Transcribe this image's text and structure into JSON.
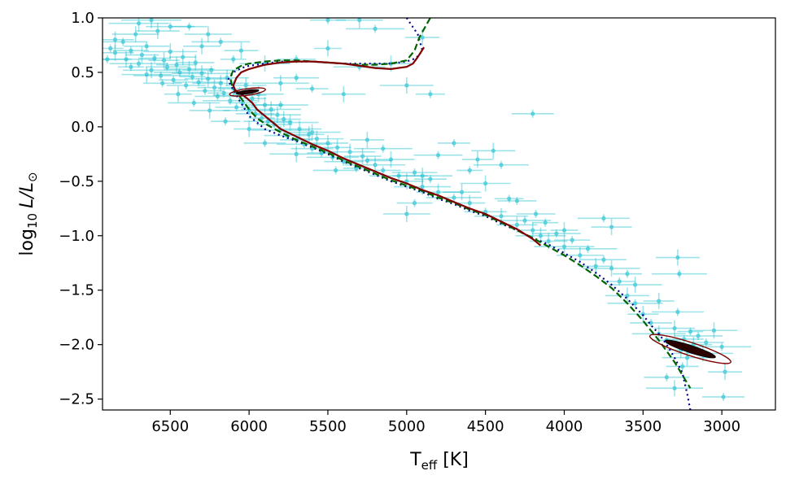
{
  "chart_data": {
    "type": "scatter",
    "title": "",
    "xlabel_main": "T",
    "xlabel_sub": "eff",
    "xlabel_unit": " [K]",
    "ylabel_prefix": "log",
    "ylabel_sub": "10",
    "ylabel_var": "L/L",
    "ylabel_sun": "⊙",
    "x_reversed": true,
    "xlim": [
      6930,
      2660
    ],
    "ylim": [
      -2.6,
      1.0
    ],
    "xticks": [
      6500,
      6000,
      5500,
      5000,
      4500,
      4000,
      3500,
      3000
    ],
    "xtick_labels": [
      "6500",
      "6000",
      "5500",
      "5000",
      "4500",
      "4000",
      "3500",
      "3000"
    ],
    "yticks": [
      1.0,
      0.5,
      0.0,
      -0.5,
      -1.0,
      -1.5,
      -2.0,
      -2.5
    ],
    "ytick_labels": [
      "1.0",
      "0.5",
      "0.0",
      "−0.5",
      "−1.0",
      "−1.5",
      "−2.0",
      "−2.5"
    ],
    "grid": false,
    "colors": {
      "points": "#17becf",
      "dotted": "#00008b",
      "dashed": "#006400",
      "solid": "#800000"
    },
    "points": [
      [
        6880,
        0.72
      ],
      [
        6850,
        0.68
      ],
      [
        6800,
        0.78
      ],
      [
        6780,
        0.62
      ],
      [
        6750,
        0.7
      ],
      [
        6720,
        0.85
      ],
      [
        6700,
        0.58
      ],
      [
        6680,
        0.66
      ],
      [
        6650,
        0.74
      ],
      [
        6620,
        0.52
      ],
      [
        6600,
        0.63
      ],
      [
        6580,
        0.88
      ],
      [
        6560,
        0.47
      ],
      [
        6540,
        0.61
      ],
      [
        6520,
        0.55
      ],
      [
        6500,
        0.69
      ],
      [
        6480,
        0.43
      ],
      [
        6460,
        0.57
      ],
      [
        6440,
        0.5
      ],
      [
        6420,
        0.64
      ],
      [
        6400,
        0.38
      ],
      [
        6380,
        0.53
      ],
      [
        6360,
        0.46
      ],
      [
        6340,
        0.59
      ],
      [
        6320,
        0.41
      ],
      [
        6300,
        0.49
      ],
      [
        6280,
        0.33
      ],
      [
        6260,
        0.44
      ],
      [
        6240,
        0.52
      ],
      [
        6220,
        0.36
      ],
      [
        6200,
        0.28
      ],
      [
        6180,
        0.4
      ],
      [
        6160,
        0.31
      ],
      [
        6140,
        0.45
      ],
      [
        6120,
        0.24
      ],
      [
        6100,
        0.35
      ],
      [
        6080,
        0.18
      ],
      [
        6060,
        0.29
      ],
      [
        6040,
        0.22
      ],
      [
        6020,
        0.38
      ],
      [
        6000,
        0.15
      ],
      [
        5980,
        0.26
      ],
      [
        5960,
        0.12
      ],
      [
        5940,
        0.3
      ],
      [
        5920,
        0.08
      ],
      [
        5900,
        0.2
      ],
      [
        5880,
        0.05
      ],
      [
        5860,
        0.16
      ],
      [
        5840,
        0.02
      ],
      [
        5820,
        0.11
      ],
      [
        5800,
        -0.03
      ],
      [
        5780,
        0.07
      ],
      [
        5760,
        -0.08
      ],
      [
        5740,
        0.04
      ],
      [
        5700,
        -0.12
      ],
      [
        5680,
        -0.02
      ],
      [
        5650,
        -0.16
      ],
      [
        5620,
        -0.07
      ],
      [
        5600,
        -0.2
      ],
      [
        5570,
        -0.11
      ],
      [
        5540,
        -0.24
      ],
      [
        5500,
        -0.15
      ],
      [
        5470,
        -0.28
      ],
      [
        5440,
        -0.19
      ],
      [
        5400,
        -0.32
      ],
      [
        5360,
        -0.23
      ],
      [
        5320,
        -0.38
      ],
      [
        5280,
        -0.27
      ],
      [
        5250,
        -0.31
      ],
      [
        5200,
        -0.35
      ],
      [
        5150,
        -0.4
      ],
      [
        5100,
        -0.3
      ],
      [
        5050,
        -0.45
      ],
      [
        5000,
        -0.5
      ],
      [
        4950,
        -0.42
      ],
      [
        4900,
        -0.55
      ],
      [
        4850,
        -0.48
      ],
      [
        4800,
        -0.6
      ],
      [
        4700,
        -0.65
      ],
      [
        4600,
        -0.7
      ],
      [
        4500,
        -0.78
      ],
      [
        4400,
        -0.82
      ],
      [
        4350,
        -0.66
      ],
      [
        4300,
        -0.9
      ],
      [
        4250,
        -0.86
      ],
      [
        4200,
        -0.95
      ],
      [
        4180,
        -0.8
      ],
      [
        4150,
        -1.0
      ],
      [
        4120,
        -0.88
      ],
      [
        4100,
        -1.05
      ],
      [
        4050,
        -0.98
      ],
      [
        4000,
        -1.1
      ],
      [
        3950,
        -1.04
      ],
      [
        3900,
        -1.18
      ],
      [
        3850,
        -1.12
      ],
      [
        3800,
        -1.28
      ],
      [
        3750,
        -1.22
      ],
      [
        3700,
        -1.3
      ],
      [
        3650,
        -1.42
      ],
      [
        3600,
        -1.55
      ],
      [
        3550,
        -1.62
      ],
      [
        3500,
        -1.72
      ],
      [
        3450,
        -1.8
      ],
      [
        3400,
        -1.9
      ],
      [
        3350,
        -1.96
      ],
      [
        3300,
        -1.85
      ],
      [
        3280,
        -1.7
      ],
      [
        3260,
        -2.05
      ],
      [
        3240,
        -1.95
      ],
      [
        3220,
        -2.12
      ],
      [
        3200,
        -1.88
      ],
      [
        3180,
        -2.0
      ],
      [
        3150,
        -1.92
      ],
      [
        3120,
        -2.08
      ],
      [
        3100,
        -1.98
      ],
      [
        3050,
        -1.87
      ],
      [
        3000,
        -2.02
      ],
      [
        2980,
        -2.25
      ],
      [
        3350,
        -2.3
      ],
      [
        3300,
        -2.4
      ],
      [
        3250,
        -2.2
      ],
      [
        3280,
        -1.2
      ],
      [
        3270,
        -1.35
      ],
      [
        3400,
        -1.6
      ],
      [
        2990,
        -2.48
      ],
      [
        3550,
        -1.45
      ],
      [
        3600,
        -1.35
      ],
      [
        3700,
        -0.92
      ],
      [
        3750,
        -0.84
      ],
      [
        4000,
        -0.95
      ],
      [
        4300,
        -0.68
      ],
      [
        4500,
        -0.52
      ],
      [
        4600,
        -0.4
      ],
      [
        4650,
        -0.6
      ],
      [
        4800,
        -0.26
      ],
      [
        4900,
        -0.45
      ],
      [
        4950,
        -0.7
      ],
      [
        5000,
        -0.8
      ],
      [
        5150,
        -0.2
      ],
      [
        5250,
        -0.12
      ],
      [
        5450,
        -0.4
      ],
      [
        5600,
        -0.05
      ],
      [
        4700,
        -0.15
      ],
      [
        4450,
        -0.22
      ],
      [
        4400,
        -0.35
      ],
      [
        4550,
        -0.3
      ],
      [
        4200,
        0.12
      ],
      [
        5000,
        0.38
      ],
      [
        4850,
        0.3
      ],
      [
        5100,
        0.58
      ],
      [
        5300,
        0.55
      ],
      [
        5500,
        0.72
      ],
      [
        5700,
        0.62
      ],
      [
        5900,
        0.58
      ],
      [
        6100,
        0.62
      ],
      [
        6300,
        0.74
      ],
      [
        6500,
        0.92
      ],
      [
        6700,
        0.95
      ],
      [
        5500,
        0.98
      ],
      [
        5300,
        0.98
      ],
      [
        5200,
        0.9
      ],
      [
        4900,
        0.82
      ],
      [
        5700,
        0.45
      ],
      [
        5800,
        0.4
      ],
      [
        5600,
        0.35
      ],
      [
        5400,
        0.3
      ],
      [
        5800,
        0.2
      ],
      [
        6000,
        -0.02
      ],
      [
        5900,
        -0.15
      ],
      [
        5700,
        -0.25
      ],
      [
        6150,
        0.05
      ],
      [
        6250,
        0.15
      ],
      [
        6350,
        0.22
      ],
      [
        6450,
        0.3
      ],
      [
        6550,
        0.4
      ],
      [
        6650,
        0.48
      ],
      [
        6750,
        0.55
      ],
      [
        6850,
        0.8
      ],
      [
        6900,
        0.62
      ],
      [
        6620,
        0.98
      ],
      [
        6380,
        0.92
      ],
      [
        6260,
        0.85
      ],
      [
        6180,
        0.78
      ],
      [
        6050,
        0.7
      ]
    ],
    "series": [
      {
        "style": "dotted",
        "x": [
          5000,
          4930,
          4900,
          4940,
          5000,
          5100,
          5200,
          5300,
          5400,
          5500,
          5600,
          5700,
          5800,
          5900,
          6000,
          6050,
          6100,
          6130,
          6120,
          6100,
          6080,
          6060,
          6030,
          6000,
          5950,
          5900,
          5800,
          5700,
          5600,
          5500,
          5400,
          5300,
          5200,
          5100,
          5000,
          4900,
          4800,
          4700,
          4600,
          4500,
          4400,
          4300,
          4200,
          4100,
          4000,
          3900,
          3800,
          3700,
          3600,
          3500,
          3450,
          3400,
          3350,
          3300,
          3250,
          3220,
          3200
        ],
        "y": [
          1.0,
          0.85,
          0.7,
          0.63,
          0.6,
          0.58,
          0.58,
          0.58,
          0.58,
          0.59,
          0.6,
          0.6,
          0.6,
          0.58,
          0.56,
          0.54,
          0.5,
          0.44,
          0.39,
          0.34,
          0.29,
          0.24,
          0.17,
          0.1,
          0.04,
          -0.02,
          -0.08,
          -0.13,
          -0.19,
          -0.25,
          -0.32,
          -0.38,
          -0.44,
          -0.5,
          -0.55,
          -0.6,
          -0.66,
          -0.71,
          -0.77,
          -0.82,
          -0.89,
          -0.95,
          -1.02,
          -1.08,
          -1.16,
          -1.24,
          -1.34,
          -1.45,
          -1.58,
          -1.73,
          -1.82,
          -1.9,
          -2.0,
          -2.12,
          -2.26,
          -2.45,
          -2.6
        ]
      },
      {
        "style": "dashed",
        "x": [
          4850,
          4920,
          4950,
          5000,
          5100,
          5200,
          5300,
          5400,
          5500,
          5600,
          5700,
          5800,
          5900,
          6000,
          6050,
          6100,
          6120,
          6110,
          6090,
          6060,
          6030,
          6000,
          5950,
          5900,
          5800,
          5700,
          5600,
          5500,
          5400,
          5300,
          5200,
          5100,
          5000,
          4900,
          4800,
          4700,
          4600,
          4500,
          4400,
          4300,
          4200,
          4100,
          4000,
          3900,
          3800,
          3700,
          3600,
          3500,
          3450,
          3400,
          3350,
          3300,
          3250,
          3200
        ],
        "y": [
          1.0,
          0.82,
          0.7,
          0.61,
          0.58,
          0.57,
          0.57,
          0.58,
          0.59,
          0.6,
          0.61,
          0.61,
          0.6,
          0.58,
          0.56,
          0.52,
          0.45,
          0.39,
          0.33,
          0.28,
          0.22,
          0.16,
          0.08,
          0.03,
          -0.05,
          -0.12,
          -0.18,
          -0.24,
          -0.31,
          -0.37,
          -0.43,
          -0.49,
          -0.54,
          -0.59,
          -0.65,
          -0.7,
          -0.76,
          -0.81,
          -0.88,
          -0.95,
          -1.02,
          -1.1,
          -1.18,
          -1.27,
          -1.37,
          -1.48,
          -1.62,
          -1.78,
          -1.87,
          -1.96,
          -2.06,
          -2.16,
          -2.28,
          -2.4
        ]
      },
      {
        "style": "solid",
        "x": [
          4890,
          4930,
          4960,
          5000,
          5100,
          5200,
          5300,
          5400,
          5500,
          5600,
          5700,
          5800,
          5900,
          6000,
          6050,
          6080,
          6100,
          6090,
          6060,
          6020,
          5980,
          5950,
          5900,
          5850,
          5800,
          5700,
          5600,
          5500,
          5400,
          5300,
          5200,
          5100,
          5000,
          4900,
          4800,
          4700,
          4600,
          4500,
          4400,
          4300,
          4200,
          4150
        ],
        "y": [
          0.73,
          0.64,
          0.58,
          0.55,
          0.53,
          0.54,
          0.56,
          0.58,
          0.59,
          0.6,
          0.6,
          0.59,
          0.57,
          0.53,
          0.5,
          0.45,
          0.38,
          0.34,
          0.31,
          0.27,
          0.22,
          0.16,
          0.1,
          0.04,
          -0.02,
          -0.09,
          -0.16,
          -0.22,
          -0.29,
          -0.35,
          -0.41,
          -0.47,
          -0.52,
          -0.58,
          -0.63,
          -0.69,
          -0.75,
          -0.8,
          -0.87,
          -0.94,
          -1.03,
          -1.09
        ]
      }
    ],
    "loops": [
      {
        "cx": 6010,
        "cy": 0.32,
        "rx_k": 115,
        "ry": 0.03,
        "angle_deg": -8
      },
      {
        "cx": 3200,
        "cy": -2.04,
        "rx_k": 270,
        "ry": 0.06,
        "angle_deg": 18
      }
    ]
  }
}
